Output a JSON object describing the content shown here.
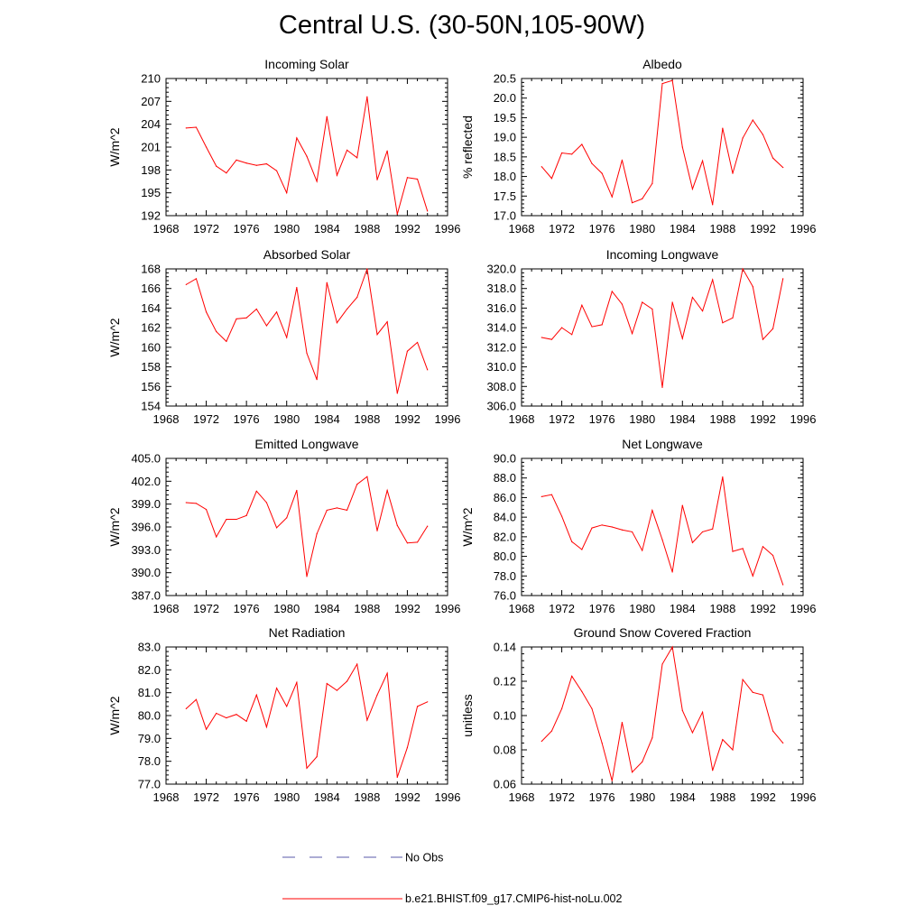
{
  "figure": {
    "title": "Central U.S. (30-50N,105-90W)"
  },
  "legend": {
    "items": [
      {
        "label": "No Obs",
        "color": "#5a5aa8",
        "style": "dashed"
      },
      {
        "label": "b.e21.BHIST.f09_g17.CMIP6-hist-noLu.002",
        "color": "#ff0000",
        "style": "solid"
      }
    ]
  },
  "chart_data": [
    {
      "type": "line",
      "title": "Incoming Solar",
      "ylabel": "W/m^2",
      "xlim": [
        1968,
        1996
      ],
      "ylim": [
        192,
        210
      ],
      "xticks": [
        "1968",
        "1972",
        "1976",
        "1980",
        "1984",
        "1988",
        "1992",
        "1996"
      ],
      "yticks": [
        "192",
        "195",
        "198",
        "201",
        "204",
        "207",
        "210"
      ],
      "x": [
        1970,
        1971,
        1972,
        1973,
        1974,
        1975,
        1976,
        1977,
        1978,
        1979,
        1980,
        1981,
        1982,
        1983,
        1984,
        1985,
        1986,
        1987,
        1988,
        1989,
        1990,
        1991,
        1992,
        1993,
        1994
      ],
      "series": [
        {
          "name": "b.e21.BHIST.f09_g17.CMIP6-hist-noLu.002",
          "color": "#ff0000",
          "values": [
            203.5,
            203.6,
            201.0,
            198.5,
            197.6,
            199.3,
            198.9,
            198.6,
            198.8,
            197.9,
            195.0,
            202.2,
            199.8,
            196.5,
            205.0,
            197.3,
            200.6,
            199.6,
            207.6,
            196.7,
            200.5,
            192.2,
            197.0,
            196.8,
            192.6
          ]
        }
      ]
    },
    {
      "type": "line",
      "title": "Albedo",
      "ylabel": "% reflected",
      "xlim": [
        1968,
        1996
      ],
      "ylim": [
        17.0,
        20.5
      ],
      "xticks": [
        "1968",
        "1972",
        "1976",
        "1980",
        "1984",
        "1988",
        "1992",
        "1996"
      ],
      "yticks": [
        "17.0",
        "17.5",
        "18.0",
        "18.5",
        "19.0",
        "19.5",
        "20.0",
        "20.5"
      ],
      "x": [
        1970,
        1971,
        1972,
        1973,
        1974,
        1975,
        1976,
        1977,
        1978,
        1979,
        1980,
        1981,
        1982,
        1983,
        1984,
        1985,
        1986,
        1987,
        1988,
        1989,
        1990,
        1991,
        1992,
        1993,
        1994
      ],
      "series": [
        {
          "name": "b.e21.BHIST.f09_g17.CMIP6-hist-noLu.002",
          "color": "#ff0000",
          "values": [
            18.25,
            17.95,
            18.6,
            18.57,
            18.82,
            18.33,
            18.08,
            17.48,
            18.42,
            17.33,
            17.43,
            17.82,
            20.37,
            20.45,
            18.75,
            17.68,
            18.4,
            17.28,
            19.23,
            18.08,
            18.98,
            19.44,
            19.07,
            18.47,
            18.23
          ]
        }
      ]
    },
    {
      "type": "line",
      "title": "Absorbed Solar",
      "ylabel": "W/m^2",
      "xlim": [
        1968,
        1996
      ],
      "ylim": [
        154,
        168
      ],
      "xticks": [
        "1968",
        "1972",
        "1976",
        "1980",
        "1984",
        "1988",
        "1992",
        "1996"
      ],
      "yticks": [
        "154",
        "156",
        "158",
        "160",
        "162",
        "164",
        "166",
        "168"
      ],
      "x": [
        1970,
        1971,
        1972,
        1973,
        1974,
        1975,
        1976,
        1977,
        1978,
        1979,
        1980,
        1981,
        1982,
        1983,
        1984,
        1985,
        1986,
        1987,
        1988,
        1989,
        1990,
        1991,
        1992,
        1993,
        1994
      ],
      "series": [
        {
          "name": "b.e21.BHIST.f09_g17.CMIP6-hist-noLu.002",
          "color": "#ff0000",
          "values": [
            166.4,
            167.0,
            163.6,
            161.6,
            160.6,
            162.9,
            163.0,
            163.9,
            162.2,
            163.6,
            161.0,
            166.1,
            159.4,
            156.7,
            166.6,
            162.5,
            163.9,
            165.1,
            168.0,
            161.3,
            162.6,
            155.3,
            159.6,
            160.5,
            157.7
          ]
        }
      ]
    },
    {
      "type": "line",
      "title": "Incoming Longwave",
      "ylabel": "",
      "xlim": [
        1968,
        1996
      ],
      "ylim": [
        306.0,
        320.0
      ],
      "xticks": [
        "1968",
        "1972",
        "1976",
        "1980",
        "1984",
        "1988",
        "1992",
        "1996"
      ],
      "yticks": [
        "306.0",
        "308.0",
        "310.0",
        "312.0",
        "314.0",
        "316.0",
        "318.0",
        "320.0"
      ],
      "x": [
        1970,
        1971,
        1972,
        1973,
        1974,
        1975,
        1976,
        1977,
        1978,
        1979,
        1980,
        1981,
        1982,
        1983,
        1984,
        1985,
        1986,
        1987,
        1988,
        1989,
        1990,
        1991,
        1992,
        1993,
        1994
      ],
      "series": [
        {
          "name": "b.e21.BHIST.f09_g17.CMIP6-hist-noLu.002",
          "color": "#ff0000",
          "values": [
            313.0,
            312.8,
            314.0,
            313.3,
            316.3,
            314.1,
            314.3,
            317.7,
            316.4,
            313.4,
            316.6,
            315.9,
            307.9,
            316.6,
            312.9,
            317.1,
            315.7,
            318.9,
            314.5,
            315.0,
            320.0,
            318.2,
            312.8,
            313.9,
            319.0
          ]
        }
      ]
    },
    {
      "type": "line",
      "title": "Emitted Longwave",
      "ylabel": "W/m^2",
      "xlim": [
        1968,
        1996
      ],
      "ylim": [
        387.0,
        405.0
      ],
      "xticks": [
        "1968",
        "1972",
        "1976",
        "1980",
        "1984",
        "1988",
        "1992",
        "1996"
      ],
      "yticks": [
        "387.0",
        "390.0",
        "393.0",
        "396.0",
        "399.0",
        "402.0",
        "405.0"
      ],
      "x": [
        1970,
        1971,
        1972,
        1973,
        1974,
        1975,
        1976,
        1977,
        1978,
        1979,
        1980,
        1981,
        1982,
        1983,
        1984,
        1985,
        1986,
        1987,
        1988,
        1989,
        1990,
        1991,
        1992,
        1993,
        1994
      ],
      "series": [
        {
          "name": "b.e21.BHIST.f09_g17.CMIP6-hist-noLu.002",
          "color": "#ff0000",
          "values": [
            399.2,
            399.1,
            398.3,
            394.7,
            397.0,
            397.0,
            397.5,
            400.7,
            399.2,
            395.9,
            397.2,
            400.8,
            389.5,
            395.1,
            398.2,
            398.5,
            398.2,
            401.6,
            402.6,
            395.5,
            400.8,
            396.2,
            393.9,
            394.0,
            396.1
          ]
        }
      ]
    },
    {
      "type": "line",
      "title": "Net Longwave",
      "ylabel": "W/m^2",
      "xlim": [
        1968,
        1996
      ],
      "ylim": [
        76.0,
        90.0
      ],
      "xticks": [
        "1968",
        "1972",
        "1976",
        "1980",
        "1984",
        "1988",
        "1992",
        "1996"
      ],
      "yticks": [
        "76.0",
        "78.0",
        "80.0",
        "82.0",
        "84.0",
        "86.0",
        "88.0",
        "90.0"
      ],
      "x": [
        1970,
        1971,
        1972,
        1973,
        1974,
        1975,
        1976,
        1977,
        1978,
        1979,
        1980,
        1981,
        1982,
        1983,
        1984,
        1985,
        1986,
        1987,
        1988,
        1989,
        1990,
        1991,
        1992,
        1993,
        1994
      ],
      "series": [
        {
          "name": "b.e21.BHIST.f09_g17.CMIP6-hist-noLu.002",
          "color": "#ff0000",
          "values": [
            86.1,
            86.3,
            84.1,
            81.5,
            80.7,
            82.9,
            83.2,
            83.0,
            82.7,
            82.5,
            80.6,
            84.7,
            81.7,
            78.4,
            85.2,
            81.4,
            82.5,
            82.8,
            88.1,
            80.5,
            80.8,
            78.0,
            81.0,
            80.1,
            77.1
          ]
        }
      ]
    },
    {
      "type": "line",
      "title": "Net Radiation",
      "ylabel": "W/m^2",
      "xlim": [
        1968,
        1996
      ],
      "ylim": [
        77.0,
        83.0
      ],
      "xticks": [
        "1968",
        "1972",
        "1976",
        "1980",
        "1984",
        "1988",
        "1992",
        "1996"
      ],
      "yticks": [
        "77.0",
        "78.0",
        "79.0",
        "80.0",
        "81.0",
        "82.0",
        "83.0"
      ],
      "x": [
        1970,
        1971,
        1972,
        1973,
        1974,
        1975,
        1976,
        1977,
        1978,
        1979,
        1980,
        1981,
        1982,
        1983,
        1984,
        1985,
        1986,
        1987,
        1988,
        1989,
        1990,
        1991,
        1992,
        1993,
        1994
      ],
      "series": [
        {
          "name": "b.e21.BHIST.f09_g17.CMIP6-hist-noLu.002",
          "color": "#ff0000",
          "values": [
            80.3,
            80.7,
            79.4,
            80.1,
            79.9,
            80.05,
            79.75,
            80.9,
            79.5,
            81.2,
            80.4,
            81.45,
            77.7,
            78.2,
            81.4,
            81.1,
            81.5,
            82.25,
            79.8,
            80.9,
            81.85,
            77.3,
            78.6,
            80.4,
            80.6
          ]
        }
      ]
    },
    {
      "type": "line",
      "title": "Ground Snow Covered Fraction",
      "ylabel": "unitless",
      "xlim": [
        1968,
        1996
      ],
      "ylim": [
        0.06,
        0.14
      ],
      "xticks": [
        "1968",
        "1972",
        "1976",
        "1980",
        "1984",
        "1988",
        "1992",
        "1996"
      ],
      "yticks": [
        "0.06",
        "0.08",
        "0.10",
        "0.12",
        "0.14"
      ],
      "x": [
        1970,
        1971,
        1972,
        1973,
        1974,
        1975,
        1976,
        1977,
        1978,
        1979,
        1980,
        1981,
        1982,
        1983,
        1984,
        1985,
        1986,
        1987,
        1988,
        1989,
        1990,
        1991,
        1992,
        1993,
        1994
      ],
      "series": [
        {
          "name": "b.e21.BHIST.f09_g17.CMIP6-hist-noLu.002",
          "color": "#ff0000",
          "values": [
            0.085,
            0.091,
            0.104,
            0.123,
            0.114,
            0.104,
            0.084,
            0.062,
            0.096,
            0.067,
            0.073,
            0.087,
            0.13,
            0.14,
            0.103,
            0.09,
            0.102,
            0.068,
            0.086,
            0.08,
            0.121,
            0.1135,
            0.112,
            0.091,
            0.084
          ]
        }
      ]
    }
  ]
}
